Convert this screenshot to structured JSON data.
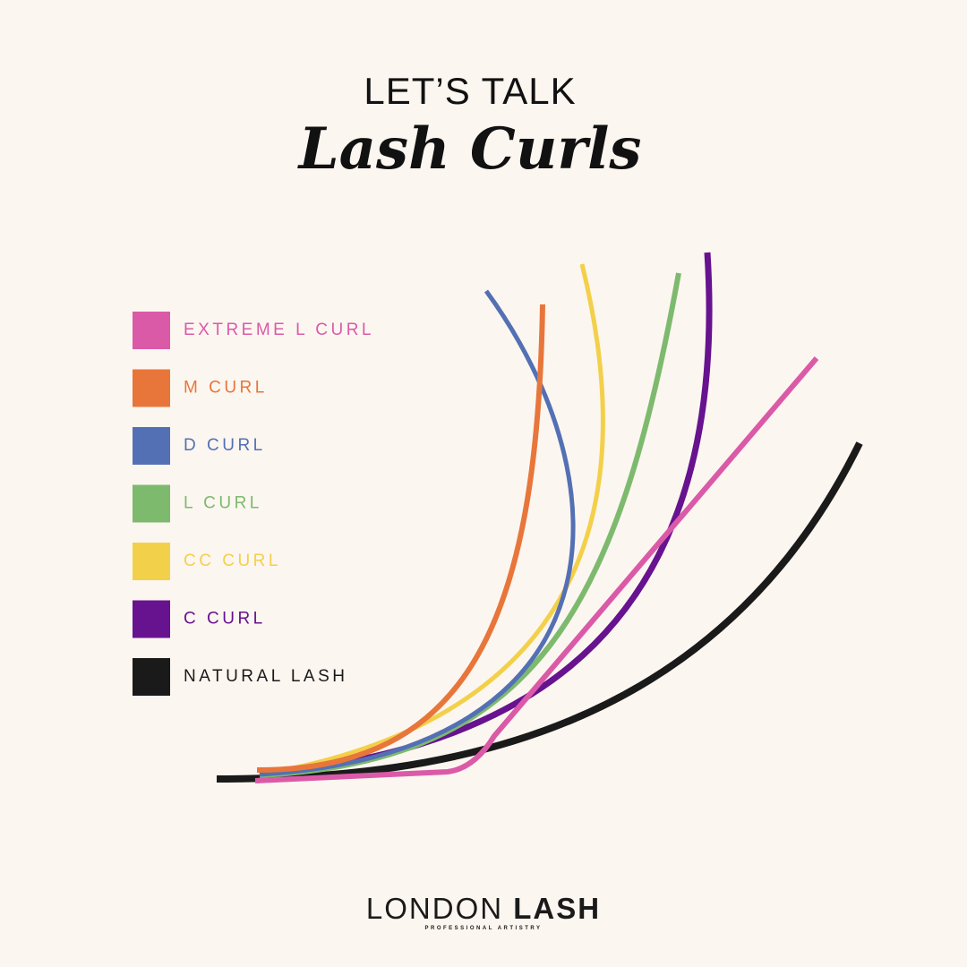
{
  "header": {
    "kicker": "LET’S TALK",
    "title": "Lash Curls"
  },
  "legend": {
    "items": [
      {
        "label": "EXTREME L CURL",
        "color": "#db5aa8"
      },
      {
        "label": "M CURL",
        "color": "#e8763a"
      },
      {
        "label": "D CURL",
        "color": "#5470b4"
      },
      {
        "label": "L CURL",
        "color": "#7dba6e"
      },
      {
        "label": "CC CURL",
        "color": "#f3d04a"
      },
      {
        "label": "C CURL",
        "color": "#67128f"
      },
      {
        "label": "NATURAL LASH",
        "color": "#1a1a1a"
      }
    ]
  },
  "brand": {
    "name_light": "LONDON",
    "name_bold": "LASH",
    "tagline": "PROFESSIONAL ARTISTRY"
  }
}
